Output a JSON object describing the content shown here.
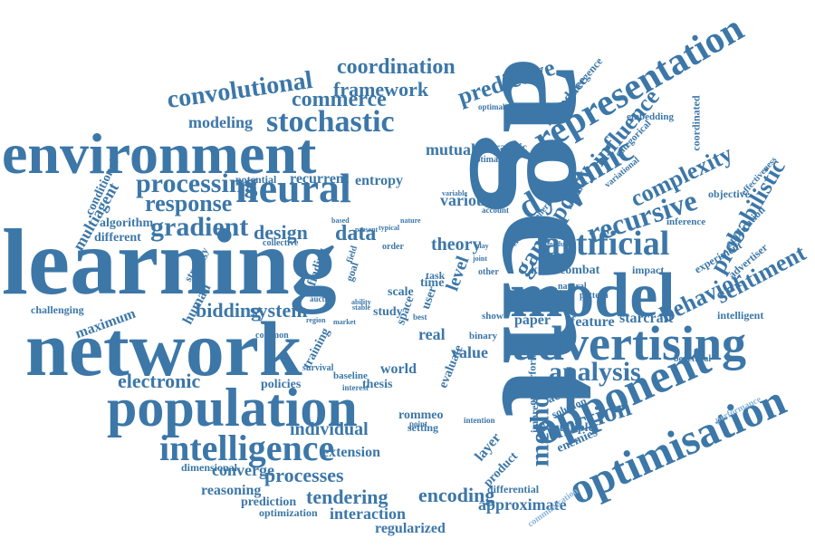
{
  "colors": {
    "primary": "#3c77a8",
    "light": "#8ab4d9"
  },
  "words": [
    {
      "text": "agent",
      "tone": "primary"
    },
    {
      "text": "learning",
      "tone": "primary"
    },
    {
      "text": "network",
      "tone": "primary"
    },
    {
      "text": "environment",
      "tone": "primary"
    },
    {
      "text": "model",
      "tone": "primary"
    },
    {
      "text": "population",
      "tone": "primary"
    },
    {
      "text": "advertising",
      "tone": "primary"
    },
    {
      "text": "neural",
      "tone": "primary"
    },
    {
      "text": "opponent",
      "tone": "primary"
    },
    {
      "text": "optimisation",
      "tone": "primary"
    },
    {
      "text": "representation",
      "tone": "primary"
    },
    {
      "text": "intelligence",
      "tone": "primary"
    },
    {
      "text": "artificial",
      "tone": "primary"
    },
    {
      "text": "dynamic",
      "tone": "primary"
    },
    {
      "text": "stochastic",
      "tone": "primary"
    },
    {
      "text": "convolutional",
      "tone": "primary"
    },
    {
      "text": "processing",
      "tone": "primary"
    },
    {
      "text": "gradient",
      "tone": "primary"
    },
    {
      "text": "response",
      "tone": "primary"
    },
    {
      "text": "coordination",
      "tone": "primary"
    },
    {
      "text": "commerce",
      "tone": "primary"
    },
    {
      "text": "framework",
      "tone": "primary"
    },
    {
      "text": "predictive",
      "tone": "primary"
    },
    {
      "text": "analysis",
      "tone": "primary"
    },
    {
      "text": "function",
      "tone": "primary"
    },
    {
      "text": "method",
      "tone": "primary"
    },
    {
      "text": "recursive",
      "tone": "primary"
    },
    {
      "text": "probabilistic",
      "tone": "primary"
    },
    {
      "text": "complexity",
      "tone": "primary"
    },
    {
      "text": "behavior",
      "tone": "primary"
    },
    {
      "text": "sentiment",
      "tone": "primary"
    },
    {
      "text": "game",
      "tone": "primary"
    },
    {
      "text": "policy",
      "tone": "primary"
    },
    {
      "text": "influence",
      "tone": "primary"
    },
    {
      "text": "electronic",
      "tone": "primary"
    },
    {
      "text": "bidding",
      "tone": "primary"
    },
    {
      "text": "system",
      "tone": "primary"
    },
    {
      "text": "design",
      "tone": "primary"
    },
    {
      "text": "data",
      "tone": "primary"
    },
    {
      "text": "theory",
      "tone": "primary"
    },
    {
      "text": "processes",
      "tone": "primary"
    },
    {
      "text": "tendering",
      "tone": "primary"
    },
    {
      "text": "encoding",
      "tone": "primary"
    },
    {
      "text": "interaction",
      "tone": "primary"
    },
    {
      "text": "regularized",
      "tone": "primary"
    },
    {
      "text": "approximate",
      "tone": "primary"
    },
    {
      "text": "individual",
      "tone": "primary"
    },
    {
      "text": "extension",
      "tone": "primary"
    },
    {
      "text": "converge",
      "tone": "primary"
    },
    {
      "text": "modeling",
      "tone": "primary"
    },
    {
      "text": "mutual",
      "tone": "primary"
    },
    {
      "text": "various",
      "tone": "primary"
    },
    {
      "text": "value",
      "tone": "primary"
    },
    {
      "text": "real",
      "tone": "primary"
    },
    {
      "text": "paper",
      "tone": "primary"
    },
    {
      "text": "feature",
      "tone": "primary"
    },
    {
      "text": "starcraft",
      "tone": "primary"
    },
    {
      "text": "human",
      "tone": "primary"
    },
    {
      "text": "maximum",
      "tone": "primary"
    },
    {
      "text": "challenging",
      "tone": "primary"
    },
    {
      "text": "reasoning",
      "tone": "primary"
    },
    {
      "text": "prediction",
      "tone": "primary"
    },
    {
      "text": "optimization",
      "tone": "primary"
    },
    {
      "text": "dimensional",
      "tone": "primary"
    },
    {
      "text": "multiagent",
      "tone": "primary"
    },
    {
      "text": "conditional",
      "tone": "primary"
    },
    {
      "text": "algorithm",
      "tone": "primary"
    },
    {
      "text": "different",
      "tone": "primary"
    },
    {
      "text": "recurrent",
      "tone": "primary"
    },
    {
      "text": "entropy",
      "tone": "primary"
    },
    {
      "text": "potential",
      "tone": "primary"
    },
    {
      "text": "policies",
      "tone": "primary"
    },
    {
      "text": "thesis",
      "tone": "primary"
    },
    {
      "text": "world",
      "tone": "primary"
    },
    {
      "text": "rommeo",
      "tone": "primary"
    },
    {
      "text": "setting",
      "tone": "primary"
    },
    {
      "text": "study",
      "tone": "primary"
    },
    {
      "text": "scale",
      "tone": "primary"
    },
    {
      "text": "time",
      "tone": "primary"
    },
    {
      "text": "task",
      "tone": "primary"
    },
    {
      "text": "level",
      "tone": "primary"
    },
    {
      "text": "know",
      "tone": "primary"
    },
    {
      "text": "combat",
      "tone": "primary"
    },
    {
      "text": "impact",
      "tone": "primary"
    },
    {
      "text": "intelligent",
      "tone": "primary"
    },
    {
      "text": "beneficial",
      "tone": "primary"
    },
    {
      "text": "action",
      "tone": "primary"
    },
    {
      "text": "solution",
      "tone": "primary"
    },
    {
      "text": "multiple",
      "tone": "primary"
    },
    {
      "text": "enemies",
      "tone": "primary"
    },
    {
      "text": "layer",
      "tone": "primary"
    },
    {
      "text": "product",
      "tone": "primary"
    },
    {
      "text": "differential",
      "tone": "primary"
    },
    {
      "text": "communication",
      "tone": "light"
    },
    {
      "text": "performance",
      "tone": "light"
    },
    {
      "text": "evaluate",
      "tone": "primary"
    },
    {
      "text": "outperform",
      "tone": "primary"
    },
    {
      "text": "impression",
      "tone": "primary"
    },
    {
      "text": "strategic",
      "tone": "primary"
    },
    {
      "text": "optimal",
      "tone": "primary"
    },
    {
      "text": "optimality",
      "tone": "primary"
    },
    {
      "text": "introduce",
      "tone": "primary"
    },
    {
      "text": "emergence",
      "tone": "primary"
    },
    {
      "text": "embedding",
      "tone": "primary"
    },
    {
      "text": "categorical",
      "tone": "primary"
    },
    {
      "text": "coordinated",
      "tone": "primary"
    },
    {
      "text": "variational",
      "tone": "primary"
    },
    {
      "text": "natural",
      "tone": "primary"
    },
    {
      "text": "objective",
      "tone": "primary"
    },
    {
      "text": "effectiveness",
      "tone": "primary"
    },
    {
      "text": "application",
      "tone": "primary"
    },
    {
      "text": "inference",
      "tone": "primary"
    },
    {
      "text": "experiment",
      "tone": "primary"
    },
    {
      "text": "advertiser",
      "tone": "primary"
    },
    {
      "text": "scenario",
      "tone": "primary"
    },
    {
      "text": "pattern",
      "tone": "primary"
    },
    {
      "text": "general",
      "tone": "primary"
    },
    {
      "text": "critical",
      "tone": "primary"
    },
    {
      "text": "account",
      "tone": "primary"
    },
    {
      "text": "variable",
      "tone": "primary"
    },
    {
      "text": "measure",
      "tone": "primary"
    },
    {
      "text": "module",
      "tone": "primary"
    },
    {
      "text": "collective",
      "tone": "primary"
    },
    {
      "text": "finding",
      "tone": "primary"
    },
    {
      "text": "strategy",
      "tone": "primary"
    },
    {
      "text": "auction",
      "tone": "primary"
    },
    {
      "text": "region",
      "tone": "primary"
    },
    {
      "text": "market",
      "tone": "primary"
    },
    {
      "text": "common",
      "tone": "primary"
    },
    {
      "text": "training",
      "tone": "primary"
    },
    {
      "text": "survival",
      "tone": "primary"
    },
    {
      "text": "baseline",
      "tone": "primary"
    },
    {
      "text": "interest",
      "tone": "primary"
    },
    {
      "text": "point",
      "tone": "primary"
    },
    {
      "text": "best",
      "tone": "primary"
    },
    {
      "text": "show",
      "tone": "primary"
    },
    {
      "text": "binary",
      "tone": "primary"
    },
    {
      "text": "user",
      "tone": "primary"
    },
    {
      "text": "space",
      "tone": "primary"
    },
    {
      "text": "based",
      "tone": "primary"
    },
    {
      "text": "present",
      "tone": "primary"
    },
    {
      "text": "typical",
      "tone": "primary"
    },
    {
      "text": "nature",
      "tone": "primary"
    },
    {
      "text": "order",
      "tone": "primary"
    },
    {
      "text": "goal",
      "tone": "primary"
    },
    {
      "text": "field",
      "tone": "primary"
    },
    {
      "text": "other",
      "tone": "primary"
    },
    {
      "text": "intention",
      "tone": "primary"
    },
    {
      "text": "play",
      "tone": "primary"
    },
    {
      "text": "joint",
      "tone": "primary"
    },
    {
      "text": "stable",
      "tone": "primary"
    },
    {
      "text": "ability",
      "tone": "primary"
    }
  ]
}
